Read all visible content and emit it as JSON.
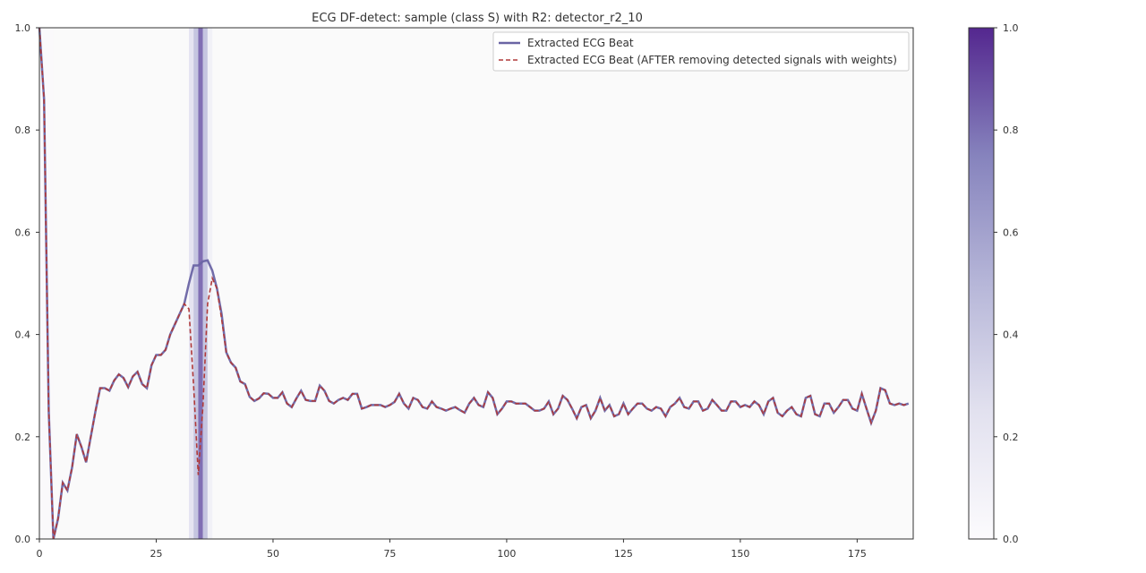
{
  "chart_data": {
    "type": "line",
    "title": "ECG DF-detect: sample (class S) with R2: detector_r2_10",
    "xlabel": "",
    "ylabel": "",
    "xlim": [
      0,
      187
    ],
    "ylim": [
      0,
      1
    ],
    "xticks": [
      0,
      25,
      50,
      75,
      100,
      125,
      150,
      175
    ],
    "yticks": [
      0.0,
      0.2,
      0.4,
      0.6,
      0.8,
      1.0
    ],
    "grid": false,
    "legend_position": "top-right",
    "colors": {
      "original": "#6a64a4",
      "after": "#b03a3a",
      "highlight": "#5a3e9a",
      "background": "#fafafa"
    },
    "series": [
      {
        "name": "Extracted ECG Beat",
        "style": "solid",
        "values": [
          1.0,
          0.86,
          0.25,
          0.0,
          0.04,
          0.11,
          0.095,
          0.14,
          0.205,
          0.18,
          0.15,
          0.2,
          0.25,
          0.295,
          0.295,
          0.29,
          0.31,
          0.322,
          0.315,
          0.297,
          0.318,
          0.327,
          0.303,
          0.295,
          0.34,
          0.36,
          0.36,
          0.37,
          0.4,
          0.42,
          0.44,
          0.46,
          0.5,
          0.535,
          0.535,
          0.543,
          0.545,
          0.525,
          0.49,
          0.44,
          0.365,
          0.345,
          0.335,
          0.308,
          0.303,
          0.278,
          0.27,
          0.275,
          0.285,
          0.284,
          0.276,
          0.276,
          0.287,
          0.265,
          0.258,
          0.275,
          0.29,
          0.272,
          0.27,
          0.27,
          0.3,
          0.29,
          0.27,
          0.265,
          0.272,
          0.276,
          0.272,
          0.284,
          0.284,
          0.255,
          0.258,
          0.262,
          0.262,
          0.262,
          0.258,
          0.262,
          0.268,
          0.284,
          0.265,
          0.255,
          0.276,
          0.272,
          0.258,
          0.255,
          0.269,
          0.258,
          0.255,
          0.251,
          0.255,
          0.258,
          0.252,
          0.247,
          0.265,
          0.276,
          0.262,
          0.258,
          0.287,
          0.276,
          0.244,
          0.255,
          0.269,
          0.269,
          0.265,
          0.265,
          0.265,
          0.258,
          0.251,
          0.251,
          0.255,
          0.269,
          0.244,
          0.255,
          0.28,
          0.272,
          0.255,
          0.236,
          0.258,
          0.262,
          0.236,
          0.251,
          0.276,
          0.251,
          0.262,
          0.24,
          0.244,
          0.265,
          0.244,
          0.255,
          0.265,
          0.265,
          0.255,
          0.251,
          0.258,
          0.255,
          0.24,
          0.258,
          0.265,
          0.276,
          0.258,
          0.255,
          0.269,
          0.269,
          0.251,
          0.255,
          0.272,
          0.262,
          0.251,
          0.251,
          0.269,
          0.269,
          0.258,
          0.262,
          0.258,
          0.269,
          0.262,
          0.244,
          0.269,
          0.276,
          0.247,
          0.24,
          0.251,
          0.258,
          0.244,
          0.24,
          0.276,
          0.28,
          0.244,
          0.24,
          0.265,
          0.265,
          0.247,
          0.258,
          0.272,
          0.272,
          0.255,
          0.251,
          0.284,
          0.255,
          0.227,
          0.251,
          0.295,
          0.291,
          0.265,
          0.262,
          0.265,
          0.262,
          0.265
        ]
      },
      {
        "name": "Extracted ECG Beat (AFTER removing detected signals with weights)",
        "style": "dashed",
        "values": [
          1.0,
          0.86,
          0.25,
          0.0,
          0.04,
          0.11,
          0.095,
          0.14,
          0.205,
          0.18,
          0.15,
          0.2,
          0.25,
          0.295,
          0.295,
          0.29,
          0.31,
          0.322,
          0.315,
          0.297,
          0.318,
          0.327,
          0.303,
          0.295,
          0.34,
          0.36,
          0.36,
          0.37,
          0.4,
          0.42,
          0.44,
          0.46,
          0.45,
          0.3,
          0.125,
          0.26,
          0.46,
          0.51,
          0.49,
          0.43,
          0.365,
          0.345,
          0.335,
          0.308,
          0.303,
          0.278,
          0.27,
          0.275,
          0.285,
          0.284,
          0.276,
          0.276,
          0.287,
          0.265,
          0.258,
          0.275,
          0.29,
          0.272,
          0.27,
          0.27,
          0.3,
          0.29,
          0.27,
          0.265,
          0.272,
          0.276,
          0.272,
          0.284,
          0.284,
          0.255,
          0.258,
          0.262,
          0.262,
          0.262,
          0.258,
          0.262,
          0.268,
          0.284,
          0.265,
          0.255,
          0.276,
          0.272,
          0.258,
          0.255,
          0.269,
          0.258,
          0.255,
          0.251,
          0.255,
          0.258,
          0.252,
          0.247,
          0.265,
          0.276,
          0.262,
          0.258,
          0.287,
          0.276,
          0.244,
          0.255,
          0.269,
          0.269,
          0.265,
          0.265,
          0.265,
          0.258,
          0.251,
          0.251,
          0.255,
          0.269,
          0.244,
          0.255,
          0.28,
          0.272,
          0.255,
          0.236,
          0.258,
          0.262,
          0.236,
          0.251,
          0.276,
          0.251,
          0.262,
          0.24,
          0.244,
          0.265,
          0.244,
          0.255,
          0.265,
          0.265,
          0.255,
          0.251,
          0.258,
          0.255,
          0.24,
          0.258,
          0.265,
          0.276,
          0.258,
          0.255,
          0.269,
          0.269,
          0.251,
          0.255,
          0.272,
          0.262,
          0.251,
          0.251,
          0.269,
          0.269,
          0.258,
          0.262,
          0.258,
          0.269,
          0.262,
          0.244,
          0.269,
          0.276,
          0.247,
          0.24,
          0.251,
          0.258,
          0.244,
          0.24,
          0.276,
          0.28,
          0.244,
          0.24,
          0.265,
          0.265,
          0.247,
          0.258,
          0.272,
          0.272,
          0.255,
          0.251,
          0.284,
          0.255,
          0.227,
          0.251,
          0.295,
          0.291,
          0.265,
          0.262,
          0.265,
          0.262,
          0.265
        ]
      }
    ],
    "detection_weights": [
      {
        "x_start": 0,
        "x_end": 3,
        "weight": 0.03
      },
      {
        "x_start": 32,
        "x_end": 33,
        "weight": 0.25
      },
      {
        "x_start": 33,
        "x_end": 34,
        "weight": 0.45
      },
      {
        "x_start": 34,
        "x_end": 35,
        "weight": 0.85
      },
      {
        "x_start": 35,
        "x_end": 36,
        "weight": 0.45
      },
      {
        "x_start": 36,
        "x_end": 37,
        "weight": 0.12
      }
    ],
    "colorbar": {
      "range": [
        0.0,
        1.0
      ],
      "ticks": [
        0.0,
        0.2,
        0.4,
        0.6,
        0.8,
        1.0
      ],
      "colormap": "Purples"
    }
  }
}
